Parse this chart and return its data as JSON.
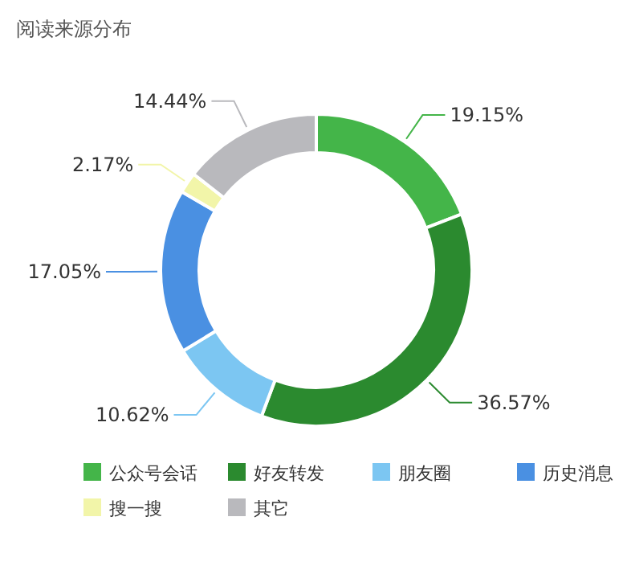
{
  "chart_data": {
    "type": "donut",
    "title": "阅读来源分布",
    "categories": [
      "公众号会话",
      "好友转发",
      "朋友圈",
      "历史消息",
      "搜一搜",
      "其它"
    ],
    "values": [
      19.15,
      36.57,
      10.62,
      17.05,
      2.17,
      14.44
    ],
    "value_labels": [
      "19.15%",
      "36.57%",
      "10.62%",
      "17.05%",
      "2.17%",
      "14.44%"
    ],
    "colors": [
      "#44b549",
      "#2b8a2f",
      "#7cc6f2",
      "#4a90e2",
      "#f2f5a9",
      "#b9b9bd"
    ],
    "legend": "bottom"
  }
}
